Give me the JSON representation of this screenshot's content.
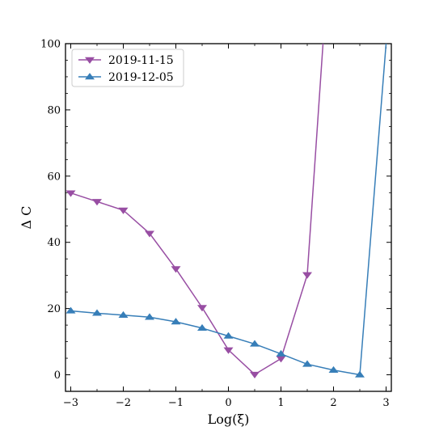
{
  "chart_data": {
    "type": "line",
    "xlabel": "Log(ξ)",
    "ylabel": "Δ C",
    "xlim": [
      -3.1,
      3.1
    ],
    "ylim": [
      -5,
      100
    ],
    "xticks": [
      -3,
      -2,
      -1,
      0,
      1,
      2,
      3
    ],
    "xtick_labels": [
      "−3",
      "−2",
      "−1",
      "0",
      "1",
      "2",
      "3"
    ],
    "yticks": [
      0,
      20,
      40,
      60,
      80,
      100
    ],
    "ytick_labels": [
      "0",
      "20",
      "40",
      "60",
      "80",
      "100"
    ],
    "grid": false,
    "legend": "top-left",
    "series": [
      {
        "name": "2019-11-15",
        "color": "#984ea3",
        "marker": "triangle-down",
        "x": [
          -3,
          -2.5,
          -2,
          -1.5,
          -1,
          -0.5,
          0,
          0.5,
          1,
          1.5,
          1.8
        ],
        "y": [
          54.9,
          52.3,
          49.7,
          42.7,
          32.0,
          20.3,
          7.5,
          0.1,
          4.9,
          30.2,
          100
        ]
      },
      {
        "name": "2019-12-05",
        "color": "#377eb8",
        "marker": "triangle-up",
        "x": [
          -3,
          -2.5,
          -2,
          -1.5,
          -1,
          -0.5,
          0,
          0.5,
          1,
          1.5,
          2,
          2.5,
          3
        ],
        "y": [
          19.3,
          18.6,
          18.0,
          17.4,
          16.0,
          14.1,
          11.7,
          9.3,
          6.3,
          3.2,
          1.4,
          0,
          100
        ]
      }
    ]
  }
}
